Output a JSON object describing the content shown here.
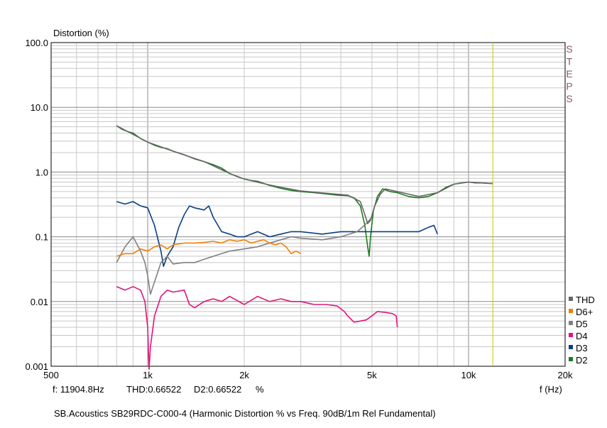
{
  "chart_data": {
    "type": "line",
    "title": "SB.Acoustics SB29RDC-C000-4 (Harmonic Distortion % vs Freq. 90dB/1m Rel Fundamental)",
    "ylabel": "Distortion (%)",
    "xlabel": "f (Hz)",
    "x_scale": "log",
    "y_scale": "log",
    "xlim": [
      500,
      20000
    ],
    "ylim": [
      0.001,
      100
    ],
    "x_ticks": [
      {
        "v": 500,
        "label": "500"
      },
      {
        "v": 1000,
        "label": "1k"
      },
      {
        "v": 2000,
        "label": "2k"
      },
      {
        "v": 5000,
        "label": "5k"
      },
      {
        "v": 10000,
        "label": "10k"
      },
      {
        "v": 20000,
        "label": "20k"
      }
    ],
    "y_ticks": [
      {
        "v": 100,
        "label": "100.0"
      },
      {
        "v": 10,
        "label": "10.0"
      },
      {
        "v": 1,
        "label": "1.0"
      },
      {
        "v": 0.1,
        "label": "0.1"
      },
      {
        "v": 0.01,
        "label": "0.01"
      },
      {
        "v": 0.001,
        "label": "0.001"
      }
    ],
    "cursor_freq": 11904.8,
    "cursor_readout": {
      "freq_text": "f: 11904.8Hz",
      "thd_text": "THD:0.66522",
      "d2_text": "D2:0.66522",
      "unit_text": "%"
    },
    "side_label": "STEPS",
    "colors": {
      "grid": "#c8c8c8",
      "grid_major": "#8c8c8c",
      "cursor": "#c8c800",
      "axis": "#000000"
    },
    "series": [
      {
        "name": "D2",
        "color": "#1f7a1f",
        "points": [
          [
            800,
            5.2
          ],
          [
            830,
            4.6
          ],
          [
            870,
            4.2
          ],
          [
            900,
            4.0
          ],
          [
            950,
            3.3
          ],
          [
            1000,
            2.9
          ],
          [
            1050,
            2.6
          ],
          [
            1100,
            2.4
          ],
          [
            1150,
            2.3
          ],
          [
            1200,
            2.1
          ],
          [
            1300,
            1.85
          ],
          [
            1400,
            1.6
          ],
          [
            1500,
            1.45
          ],
          [
            1600,
            1.3
          ],
          [
            1700,
            1.15
          ],
          [
            1800,
            0.95
          ],
          [
            1900,
            0.85
          ],
          [
            2000,
            0.78
          ],
          [
            2100,
            0.74
          ],
          [
            2200,
            0.72
          ],
          [
            2400,
            0.62
          ],
          [
            2600,
            0.56
          ],
          [
            2800,
            0.52
          ],
          [
            3000,
            0.5
          ],
          [
            3300,
            0.48
          ],
          [
            3600,
            0.46
          ],
          [
            3900,
            0.44
          ],
          [
            4200,
            0.43
          ],
          [
            4400,
            0.4
          ],
          [
            4600,
            0.3
          ],
          [
            4750,
            0.15
          ],
          [
            4850,
            0.07
          ],
          [
            4900,
            0.05
          ],
          [
            4950,
            0.1
          ],
          [
            5050,
            0.25
          ],
          [
            5200,
            0.42
          ],
          [
            5400,
            0.55
          ],
          [
            5700,
            0.5
          ],
          [
            6000,
            0.48
          ],
          [
            6500,
            0.42
          ],
          [
            7000,
            0.4
          ],
          [
            7500,
            0.42
          ],
          [
            8000,
            0.48
          ],
          [
            8500,
            0.58
          ],
          [
            9000,
            0.65
          ],
          [
            9500,
            0.68
          ],
          [
            10000,
            0.7
          ],
          [
            10500,
            0.68
          ],
          [
            11000,
            0.68
          ],
          [
            11500,
            0.67
          ],
          [
            11904.8,
            0.665
          ]
        ]
      },
      {
        "name": "D3",
        "color": "#0b3d80",
        "points": [
          [
            800,
            0.35
          ],
          [
            850,
            0.32
          ],
          [
            900,
            0.35
          ],
          [
            950,
            0.3
          ],
          [
            1000,
            0.28
          ],
          [
            1050,
            0.15
          ],
          [
            1100,
            0.06
          ],
          [
            1120,
            0.035
          ],
          [
            1150,
            0.05
          ],
          [
            1200,
            0.07
          ],
          [
            1250,
            0.14
          ],
          [
            1300,
            0.22
          ],
          [
            1350,
            0.3
          ],
          [
            1400,
            0.28
          ],
          [
            1500,
            0.26
          ],
          [
            1550,
            0.3
          ],
          [
            1600,
            0.2
          ],
          [
            1700,
            0.12
          ],
          [
            1800,
            0.11
          ],
          [
            1900,
            0.1
          ],
          [
            2000,
            0.1
          ],
          [
            2200,
            0.12
          ],
          [
            2400,
            0.1
          ],
          [
            2600,
            0.11
          ],
          [
            2800,
            0.12
          ],
          [
            3000,
            0.12
          ],
          [
            3500,
            0.11
          ],
          [
            4000,
            0.12
          ],
          [
            4500,
            0.12
          ],
          [
            5000,
            0.12
          ],
          [
            5500,
            0.12
          ],
          [
            6000,
            0.12
          ],
          [
            6500,
            0.12
          ],
          [
            7000,
            0.12
          ],
          [
            7500,
            0.14
          ],
          [
            7800,
            0.15
          ],
          [
            8000,
            0.11
          ]
        ]
      },
      {
        "name": "D4",
        "color": "#e0157a",
        "points": [
          [
            800,
            0.017
          ],
          [
            850,
            0.015
          ],
          [
            900,
            0.017
          ],
          [
            950,
            0.015
          ],
          [
            980,
            0.01
          ],
          [
            1000,
            0.004
          ],
          [
            1010,
            0.0009
          ],
          [
            1020,
            0.002
          ],
          [
            1050,
            0.006
          ],
          [
            1100,
            0.012
          ],
          [
            1150,
            0.015
          ],
          [
            1200,
            0.014
          ],
          [
            1300,
            0.015
          ],
          [
            1350,
            0.009
          ],
          [
            1400,
            0.008
          ],
          [
            1500,
            0.01
          ],
          [
            1600,
            0.011
          ],
          [
            1700,
            0.01
          ],
          [
            1800,
            0.012
          ],
          [
            2000,
            0.009
          ],
          [
            2200,
            0.012
          ],
          [
            2400,
            0.01
          ],
          [
            2600,
            0.011
          ],
          [
            2800,
            0.01
          ],
          [
            3000,
            0.01
          ],
          [
            3300,
            0.009
          ],
          [
            3600,
            0.009
          ],
          [
            3900,
            0.0085
          ],
          [
            4100,
            0.007
          ],
          [
            4200,
            0.006
          ],
          [
            4400,
            0.0048
          ],
          [
            4600,
            0.005
          ],
          [
            4800,
            0.0052
          ],
          [
            5000,
            0.006
          ],
          [
            5200,
            0.007
          ],
          [
            5500,
            0.0068
          ],
          [
            5800,
            0.0065
          ],
          [
            5950,
            0.006
          ],
          [
            6000,
            0.004
          ]
        ]
      },
      {
        "name": "D5",
        "color": "#808080",
        "points": [
          [
            800,
            0.04
          ],
          [
            850,
            0.07
          ],
          [
            900,
            0.1
          ],
          [
            950,
            0.06
          ],
          [
            980,
            0.04
          ],
          [
            1000,
            0.025
          ],
          [
            1020,
            0.013
          ],
          [
            1050,
            0.02
          ],
          [
            1100,
            0.04
          ],
          [
            1150,
            0.05
          ],
          [
            1200,
            0.038
          ],
          [
            1300,
            0.04
          ],
          [
            1400,
            0.04
          ],
          [
            1500,
            0.045
          ],
          [
            1600,
            0.05
          ],
          [
            1700,
            0.055
          ],
          [
            1800,
            0.06
          ],
          [
            2000,
            0.065
          ],
          [
            2200,
            0.07
          ],
          [
            2400,
            0.08
          ],
          [
            2600,
            0.09
          ],
          [
            2800,
            0.1
          ],
          [
            3000,
            0.095
          ],
          [
            3500,
            0.09
          ],
          [
            4000,
            0.1
          ],
          [
            4500,
            0.12
          ],
          [
            4800,
            0.16
          ],
          [
            5000,
            0.2
          ]
        ]
      },
      {
        "name": "D6+",
        "color": "#f08000",
        "points": [
          [
            800,
            0.05
          ],
          [
            850,
            0.055
          ],
          [
            900,
            0.055
          ],
          [
            950,
            0.065
          ],
          [
            1000,
            0.06
          ],
          [
            1050,
            0.07
          ],
          [
            1100,
            0.075
          ],
          [
            1150,
            0.065
          ],
          [
            1200,
            0.075
          ],
          [
            1300,
            0.08
          ],
          [
            1400,
            0.08
          ],
          [
            1500,
            0.082
          ],
          [
            1600,
            0.085
          ],
          [
            1700,
            0.08
          ],
          [
            1800,
            0.09
          ],
          [
            1900,
            0.085
          ],
          [
            2000,
            0.09
          ],
          [
            2100,
            0.08
          ],
          [
            2200,
            0.085
          ],
          [
            2300,
            0.09
          ],
          [
            2400,
            0.08
          ],
          [
            2500,
            0.075
          ],
          [
            2600,
            0.08
          ],
          [
            2700,
            0.07
          ],
          [
            2800,
            0.055
          ],
          [
            2900,
            0.06
          ],
          [
            3000,
            0.055
          ]
        ]
      },
      {
        "name": "THD",
        "color": "#666666",
        "points": [
          [
            800,
            5.2
          ],
          [
            1000,
            2.9
          ],
          [
            1200,
            2.1
          ],
          [
            1500,
            1.45
          ],
          [
            1800,
            0.95
          ],
          [
            2000,
            0.78
          ],
          [
            2400,
            0.63
          ],
          [
            3000,
            0.51
          ],
          [
            3600,
            0.47
          ],
          [
            4200,
            0.44
          ],
          [
            4600,
            0.35
          ],
          [
            4750,
            0.22
          ],
          [
            4850,
            0.16
          ],
          [
            4950,
            0.18
          ],
          [
            5100,
            0.3
          ],
          [
            5300,
            0.45
          ],
          [
            5500,
            0.55
          ],
          [
            6000,
            0.5
          ],
          [
            7000,
            0.42
          ],
          [
            8000,
            0.48
          ],
          [
            9000,
            0.65
          ],
          [
            10000,
            0.7
          ],
          [
            11000,
            0.68
          ],
          [
            11904.8,
            0.665
          ]
        ]
      }
    ],
    "legend_order": [
      "THD",
      "D6+",
      "D5",
      "D4",
      "D3",
      "D2"
    ],
    "legend_position": "bottom-right"
  }
}
